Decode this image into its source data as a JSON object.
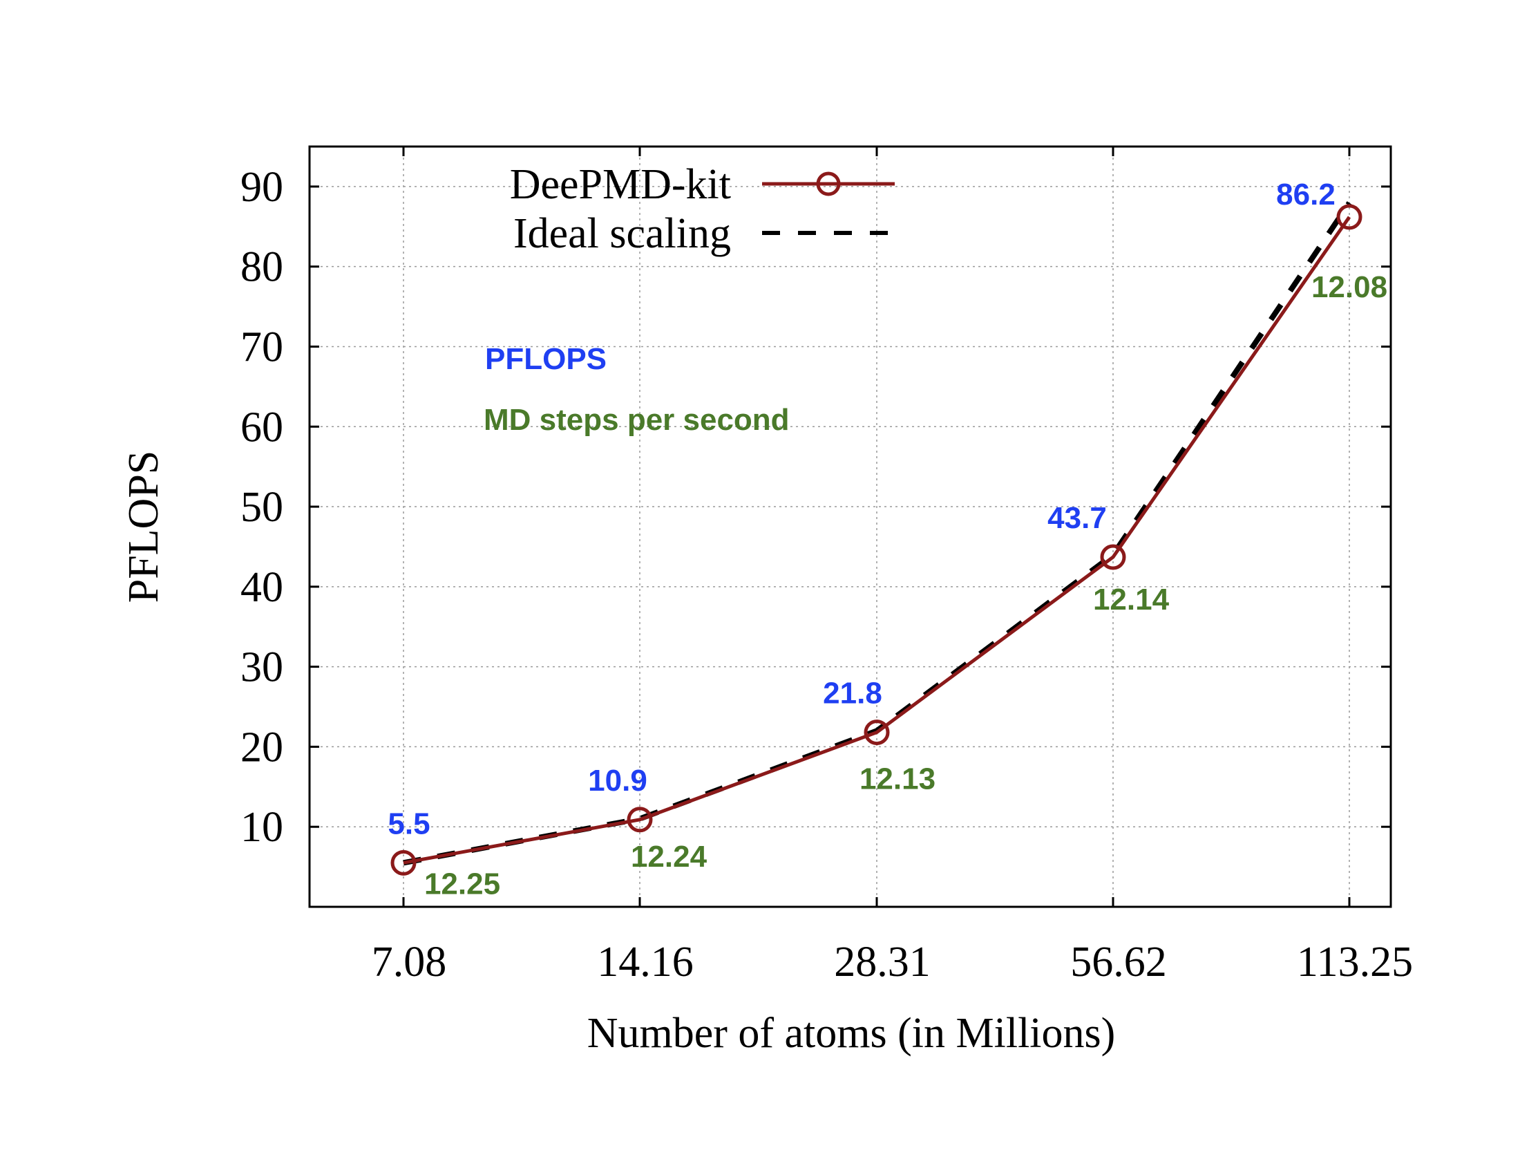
{
  "chart_data": {
    "type": "line",
    "title": "",
    "xlabel": "Number of atoms (in Millions)",
    "ylabel": "PFLOPS",
    "categories": [
      "7.08",
      "14.16",
      "28.31",
      "56.62",
      "113.25"
    ],
    "x_scale": "log2 (categorical ticks)",
    "yticks": [
      10,
      20,
      30,
      40,
      50,
      60,
      70,
      80,
      90
    ],
    "ylim": [
      0,
      95
    ],
    "grid": true,
    "legend_position": "top-left",
    "series": [
      {
        "name": "DeePMD-kit",
        "values": [
          5.5,
          10.9,
          21.8,
          43.7,
          86.2
        ],
        "style": "solid line with open circle markers",
        "color": "#8b1a1a"
      },
      {
        "name": "Ideal scaling",
        "values": [
          5.5,
          11.0,
          21.99,
          43.98,
          87.97
        ],
        "style": "dashed line",
        "color": "#000000"
      }
    ],
    "pflops_labels": [
      "5.5",
      "10.9",
      "21.8",
      "43.7",
      "86.2"
    ],
    "steps_labels": [
      "12.25",
      "12.24",
      "12.13",
      "12.14",
      "12.08"
    ],
    "annotations": [
      {
        "text": "PFLOPS",
        "color": "#1f3ff2"
      },
      {
        "text": "MD steps per second",
        "color": "#4a7a2a"
      }
    ],
    "colors": {
      "pflops_label": "#1f3ff2",
      "steps_label": "#4a7a2a",
      "deepmd_line": "#8b1a1a",
      "ideal_line": "#000000",
      "grid": "#999999"
    }
  }
}
